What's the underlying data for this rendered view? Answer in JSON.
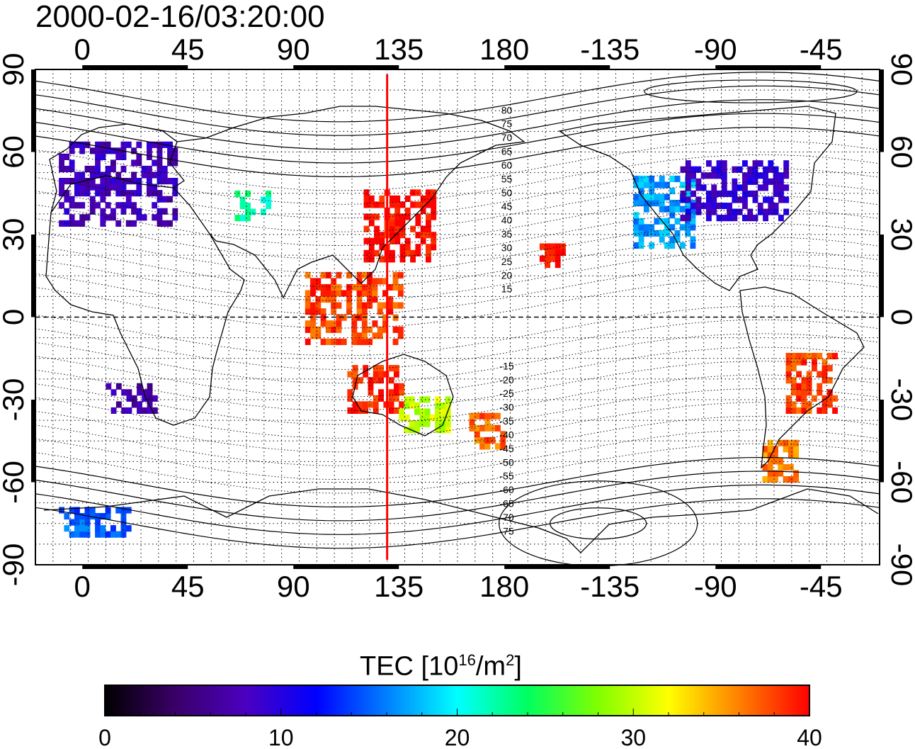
{
  "timestamp": "2000-02-16/03:20:00",
  "lon_ticks": [
    "0",
    "45",
    "90",
    "135",
    "180",
    "-135",
    "-90",
    "-45"
  ],
  "lat_ticks": [
    "90",
    "60",
    "30",
    "0",
    "-30",
    "-60",
    "-90"
  ],
  "contour_labels_north": [
    "80",
    "75",
    "70",
    "65",
    "60",
    "55",
    "50",
    "45",
    "40",
    "35",
    "30",
    "25",
    "20",
    "15"
  ],
  "contour_labels_south": [
    "-15",
    "-20",
    "-25",
    "-30",
    "-35",
    "-40",
    "-45",
    "-50",
    "-55",
    "-60",
    "-65",
    "-70",
    "-75"
  ],
  "colorbar": {
    "title_prefix": "TEC  [10",
    "title_exp1": "16",
    "title_mid": "/m",
    "title_exp2": "2",
    "title_suffix": "]",
    "min": 0,
    "max": 40,
    "tick_labels": [
      "0",
      "10",
      "20",
      "30",
      "40"
    ],
    "colors": [
      "#000000",
      "#3a0068",
      "#4b00c0",
      "#0000ff",
      "#0080ff",
      "#00ffff",
      "#00ff60",
      "#80ff00",
      "#ffff00",
      "#ff8000",
      "#ff0000"
    ]
  },
  "meridian_marker": {
    "longitude_deg": 130,
    "color": "#ff0000"
  },
  "chart_data": {
    "type": "heatmap",
    "title": "2000-02-16/03:20:00",
    "xlabel": "",
    "ylabel": "",
    "xlim": [
      -20,
      340
    ],
    "ylim": [
      -90,
      90
    ],
    "value_range": [
      0,
      40
    ],
    "regions": [
      {
        "lon_range": [
          -10,
          40
        ],
        "lat_range": [
          33,
          63
        ],
        "value": 8
      },
      {
        "lon_range": [
          65,
          80
        ],
        "lat_range": [
          35,
          45
        ],
        "value": 22
      },
      {
        "lon_range": [
          120,
          150
        ],
        "lat_range": [
          20,
          45
        ],
        "value": 40
      },
      {
        "lon_range": [
          95,
          135
        ],
        "lat_range": [
          -10,
          15
        ],
        "value": 38
      },
      {
        "lon_range": [
          113,
          135
        ],
        "lat_range": [
          -35,
          -18
        ],
        "value": 39
      },
      {
        "lon_range": [
          135,
          155
        ],
        "lat_range": [
          -42,
          -30
        ],
        "value": 30
      },
      {
        "lon_range": [
          165,
          180
        ],
        "lat_range": [
          -48,
          -35
        ],
        "value": 37
      },
      {
        "lon_range": [
          235,
          260
        ],
        "lat_range": [
          25,
          50
        ],
        "value": 17
      },
      {
        "lon_range": [
          255,
          300
        ],
        "lat_range": [
          35,
          55
        ],
        "value": 9
      },
      {
        "lon_range": [
          300,
          320
        ],
        "lat_range": [
          -35,
          -15
        ],
        "value": 38
      },
      {
        "lon_range": [
          290,
          305
        ],
        "lat_range": [
          -60,
          -45
        ],
        "value": 36
      },
      {
        "lon_range": [
          195,
          205
        ],
        "lat_range": [
          18,
          25
        ],
        "value": 40
      },
      {
        "lon_range": [
          10,
          30
        ],
        "lat_range": [
          -35,
          -25
        ],
        "value": 7
      },
      {
        "lon_range": [
          -10,
          20
        ],
        "lat_range": [
          -80,
          -70
        ],
        "value": 15
      }
    ]
  }
}
